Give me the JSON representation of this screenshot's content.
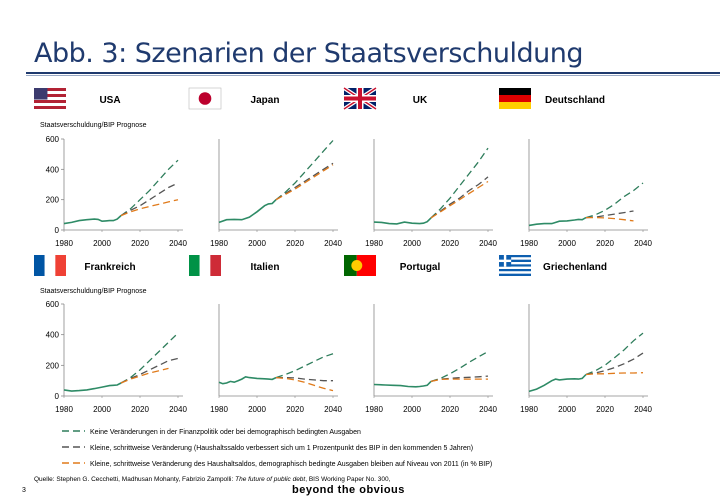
{
  "slide": {
    "title": "Abb. 3: Szenarien der Staatsverschuldung",
    "source_prefix": "Quelle: Stephen G. Cecchetti, Madhusan Mohanty, Fabrizio Zampolli: ",
    "source_title": "The future of public debt",
    "source_suffix": ", BIS Working Paper No. 300,",
    "page_number": "3",
    "brand": "beyond the obvious"
  },
  "colors": {
    "green": "#2e7d5b",
    "gray": "#555555",
    "orange": "#e07a1a",
    "hist": "#2e8b66",
    "axis": "#888888"
  },
  "chart_data": {
    "type": "line",
    "ylabel": "Staatsverschuldung/BIP Prognose",
    "x_ticks": [
      1980,
      2000,
      2020,
      2040
    ],
    "legend": [
      {
        "key": "keine",
        "label": "Keine Veränderungen in der Finanzpolitik oder bei demographisch bedingten Ausgaben",
        "color": "#2e7d5b"
      },
      {
        "key": "haushalt",
        "label": "Kleine, schrittweise Veränderung (Haushaltssaldo verbessert sich um 1 Prozentpunkt des BIP in den kommenden 5 Jahren)",
        "color": "#555555"
      },
      {
        "key": "demo",
        "label": "Kleine, schrittweise Veränderung des Haushaltsaldos, demographisch bedingte Ausgaben bleiben auf Niveau von 2011 (in % BIP)",
        "color": "#e07a1a"
      }
    ],
    "rows": [
      {
        "ylim": [
          0,
          600
        ],
        "yticks": [
          0,
          200,
          400,
          600
        ],
        "show_ylabel": true
      },
      {
        "ylim": [
          0,
          600
        ],
        "yticks": [
          0,
          200,
          400,
          600
        ],
        "show_ylabel": true
      }
    ],
    "panels": [
      {
        "country": "USA",
        "flag": "us",
        "row": 0,
        "col": 0,
        "hist": [
          [
            1980,
            42
          ],
          [
            1984,
            50
          ],
          [
            1988,
            62
          ],
          [
            1992,
            68
          ],
          [
            1996,
            72
          ],
          [
            1998,
            70
          ],
          [
            2000,
            58
          ],
          [
            2002,
            60
          ],
          [
            2004,
            62
          ],
          [
            2006,
            62
          ],
          [
            2008,
            72
          ],
          [
            2010,
            95
          ]
        ],
        "keine": [
          [
            2010,
            95
          ],
          [
            2015,
            140
          ],
          [
            2020,
            200
          ],
          [
            2025,
            260
          ],
          [
            2030,
            330
          ],
          [
            2035,
            400
          ],
          [
            2040,
            460
          ]
        ],
        "haushalt": [
          [
            2010,
            95
          ],
          [
            2015,
            130
          ],
          [
            2020,
            160
          ],
          [
            2025,
            200
          ],
          [
            2030,
            240
          ],
          [
            2035,
            280
          ],
          [
            2040,
            310
          ]
        ],
        "demo": [
          [
            2010,
            95
          ],
          [
            2015,
            120
          ],
          [
            2020,
            140
          ],
          [
            2025,
            155
          ],
          [
            2030,
            170
          ],
          [
            2035,
            185
          ],
          [
            2040,
            200
          ]
        ]
      },
      {
        "country": "Japan",
        "flag": "jp",
        "row": 0,
        "col": 1,
        "hist": [
          [
            1980,
            50
          ],
          [
            1984,
            68
          ],
          [
            1988,
            70
          ],
          [
            1992,
            68
          ],
          [
            1996,
            85
          ],
          [
            2000,
            120
          ],
          [
            2004,
            160
          ],
          [
            2006,
            172
          ],
          [
            2008,
            175
          ],
          [
            2010,
            200
          ]
        ],
        "keine": [
          [
            2010,
            200
          ],
          [
            2015,
            250
          ],
          [
            2020,
            310
          ],
          [
            2025,
            380
          ],
          [
            2030,
            450
          ],
          [
            2035,
            520
          ],
          [
            2040,
            590
          ]
        ],
        "haushalt": [
          [
            2010,
            200
          ],
          [
            2015,
            240
          ],
          [
            2020,
            280
          ],
          [
            2025,
            320
          ],
          [
            2030,
            360
          ],
          [
            2035,
            400
          ],
          [
            2040,
            440
          ]
        ],
        "demo": [
          [
            2010,
            200
          ],
          [
            2015,
            235
          ],
          [
            2020,
            270
          ],
          [
            2025,
            310
          ],
          [
            2030,
            350
          ],
          [
            2035,
            390
          ],
          [
            2040,
            430
          ]
        ]
      },
      {
        "country": "UK",
        "flag": "uk",
        "row": 0,
        "col": 2,
        "hist": [
          [
            1980,
            52
          ],
          [
            1984,
            50
          ],
          [
            1988,
            42
          ],
          [
            1992,
            40
          ],
          [
            1996,
            52
          ],
          [
            2000,
            45
          ],
          [
            2004,
            42
          ],
          [
            2006,
            45
          ],
          [
            2008,
            55
          ],
          [
            2010,
            80
          ]
        ],
        "keine": [
          [
            2010,
            80
          ],
          [
            2015,
            140
          ],
          [
            2020,
            210
          ],
          [
            2025,
            290
          ],
          [
            2030,
            370
          ],
          [
            2035,
            450
          ],
          [
            2040,
            540
          ]
        ],
        "haushalt": [
          [
            2010,
            80
          ],
          [
            2015,
            125
          ],
          [
            2020,
            170
          ],
          [
            2025,
            210
          ],
          [
            2030,
            260
          ],
          [
            2035,
            300
          ],
          [
            2040,
            350
          ]
        ],
        "demo": [
          [
            2010,
            80
          ],
          [
            2015,
            120
          ],
          [
            2020,
            160
          ],
          [
            2025,
            200
          ],
          [
            2030,
            240
          ],
          [
            2035,
            280
          ],
          [
            2040,
            320
          ]
        ]
      },
      {
        "country": "Deutschland",
        "flag": "de",
        "row": 0,
        "col": 3,
        "hist": [
          [
            1980,
            30
          ],
          [
            1984,
            38
          ],
          [
            1988,
            42
          ],
          [
            1992,
            42
          ],
          [
            1996,
            58
          ],
          [
            2000,
            60
          ],
          [
            2004,
            66
          ],
          [
            2006,
            70
          ],
          [
            2008,
            68
          ],
          [
            2010,
            82
          ]
        ],
        "keine": [
          [
            2010,
            82
          ],
          [
            2015,
            100
          ],
          [
            2020,
            130
          ],
          [
            2025,
            170
          ],
          [
            2030,
            220
          ],
          [
            2035,
            260
          ],
          [
            2040,
            310
          ]
        ],
        "haushalt": [
          [
            2010,
            82
          ],
          [
            2015,
            85
          ],
          [
            2020,
            95
          ],
          [
            2025,
            105
          ],
          [
            2030,
            115
          ],
          [
            2035,
            125
          ]
        ],
        "demo": [
          [
            2010,
            82
          ],
          [
            2015,
            82
          ],
          [
            2020,
            80
          ],
          [
            2025,
            75
          ],
          [
            2030,
            68
          ],
          [
            2035,
            60
          ]
        ]
      },
      {
        "country": "Frankreich",
        "flag": "fr",
        "row": 1,
        "col": 0,
        "hist": [
          [
            1980,
            40
          ],
          [
            1984,
            32
          ],
          [
            1988,
            35
          ],
          [
            1992,
            40
          ],
          [
            1996,
            48
          ],
          [
            2000,
            58
          ],
          [
            2004,
            68
          ],
          [
            2006,
            70
          ],
          [
            2008,
            72
          ],
          [
            2010,
            85
          ]
        ],
        "keine": [
          [
            2010,
            85
          ],
          [
            2015,
            120
          ],
          [
            2020,
            170
          ],
          [
            2025,
            230
          ],
          [
            2030,
            290
          ],
          [
            2035,
            350
          ],
          [
            2040,
            410
          ]
        ],
        "haushalt": [
          [
            2010,
            85
          ],
          [
            2015,
            115
          ],
          [
            2020,
            140
          ],
          [
            2025,
            170
          ],
          [
            2030,
            200
          ],
          [
            2035,
            230
          ],
          [
            2040,
            245
          ]
        ],
        "demo": [
          [
            2010,
            85
          ],
          [
            2015,
            110
          ],
          [
            2020,
            130
          ],
          [
            2025,
            150
          ],
          [
            2030,
            165
          ],
          [
            2035,
            180
          ]
        ]
      },
      {
        "country": "Italien",
        "flag": "it",
        "row": 1,
        "col": 1,
        "hist": [
          [
            1980,
            90
          ],
          [
            1982,
            80
          ],
          [
            1984,
            85
          ],
          [
            1986,
            95
          ],
          [
            1988,
            90
          ],
          [
            1990,
            100
          ],
          [
            1992,
            110
          ],
          [
            1994,
            125
          ],
          [
            1996,
            120
          ],
          [
            2000,
            115
          ],
          [
            2004,
            112
          ],
          [
            2006,
            110
          ],
          [
            2008,
            108
          ],
          [
            2010,
            120
          ]
        ],
        "keine": [
          [
            2010,
            120
          ],
          [
            2015,
            140
          ],
          [
            2020,
            165
          ],
          [
            2025,
            195
          ],
          [
            2030,
            225
          ],
          [
            2035,
            255
          ],
          [
            2040,
            275
          ]
        ],
        "haushalt": [
          [
            2010,
            120
          ],
          [
            2015,
            120
          ],
          [
            2020,
            118
          ],
          [
            2025,
            110
          ],
          [
            2030,
            105
          ],
          [
            2035,
            100
          ],
          [
            2040,
            100
          ]
        ],
        "demo": [
          [
            2010,
            120
          ],
          [
            2015,
            115
          ],
          [
            2020,
            105
          ],
          [
            2025,
            90
          ],
          [
            2030,
            70
          ],
          [
            2035,
            50
          ],
          [
            2040,
            35
          ]
        ]
      },
      {
        "country": "Portugal",
        "flag": "pt",
        "row": 1,
        "col": 2,
        "hist": [
          [
            1980,
            75
          ],
          [
            1986,
            72
          ],
          [
            1990,
            70
          ],
          [
            1994,
            68
          ],
          [
            1998,
            62
          ],
          [
            2002,
            60
          ],
          [
            2004,
            62
          ],
          [
            2006,
            65
          ],
          [
            2008,
            70
          ],
          [
            2010,
            95
          ]
        ],
        "keine": [
          [
            2010,
            95
          ],
          [
            2015,
            115
          ],
          [
            2020,
            145
          ],
          [
            2025,
            180
          ],
          [
            2030,
            220
          ],
          [
            2035,
            255
          ],
          [
            2040,
            290
          ]
        ],
        "haushalt": [
          [
            2010,
            95
          ],
          [
            2015,
            110
          ],
          [
            2020,
            115
          ],
          [
            2025,
            120
          ],
          [
            2030,
            122
          ],
          [
            2035,
            125
          ],
          [
            2040,
            130
          ]
        ],
        "demo": [
          [
            2010,
            95
          ],
          [
            2015,
            108
          ],
          [
            2020,
            110
          ],
          [
            2025,
            110
          ],
          [
            2030,
            110
          ],
          [
            2035,
            110
          ],
          [
            2040,
            110
          ]
        ]
      },
      {
        "country": "Griechenland",
        "flag": "gr",
        "row": 1,
        "col": 3,
        "hist": [
          [
            1980,
            30
          ],
          [
            1984,
            45
          ],
          [
            1988,
            70
          ],
          [
            1992,
            100
          ],
          [
            1994,
            110
          ],
          [
            1996,
            105
          ],
          [
            2000,
            110
          ],
          [
            2004,
            112
          ],
          [
            2006,
            110
          ],
          [
            2008,
            115
          ],
          [
            2010,
            140
          ]
        ],
        "keine": [
          [
            2010,
            140
          ],
          [
            2015,
            165
          ],
          [
            2020,
            200
          ],
          [
            2025,
            250
          ],
          [
            2030,
            300
          ],
          [
            2035,
            360
          ],
          [
            2040,
            410
          ]
        ],
        "haushalt": [
          [
            2010,
            140
          ],
          [
            2015,
            150
          ],
          [
            2020,
            165
          ],
          [
            2025,
            185
          ],
          [
            2030,
            210
          ],
          [
            2035,
            240
          ],
          [
            2040,
            280
          ]
        ],
        "demo": [
          [
            2010,
            140
          ],
          [
            2015,
            145
          ],
          [
            2020,
            145
          ],
          [
            2025,
            148
          ],
          [
            2030,
            150
          ],
          [
            2035,
            150
          ],
          [
            2040,
            152
          ]
        ]
      }
    ]
  }
}
